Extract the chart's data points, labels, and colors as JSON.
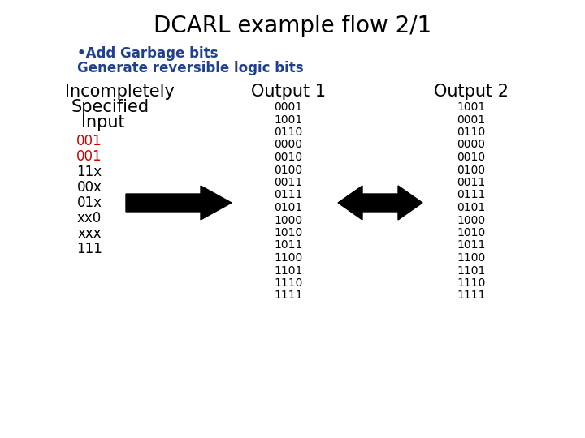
{
  "title": "DCARL example flow 2/1",
  "bullet_line1": "•Add Garbage bits",
  "bullet_line2": "Generate reversible logic bits",
  "bullet_color": "#1F3F8F",
  "input_items": [
    "001",
    "001",
    "11x",
    "00x",
    "01x",
    "xx0",
    "xxx",
    "111"
  ],
  "input_colors": [
    "#CC0000",
    "#CC0000",
    "#000000",
    "#000000",
    "#000000",
    "#000000",
    "#000000",
    "#000000"
  ],
  "output1": [
    "0001",
    "1001",
    "0110",
    "0000",
    "0010",
    "0100",
    "0011",
    "0111",
    "0101",
    "1000",
    "1010",
    "1011",
    "1100",
    "1101",
    "1110",
    "1111"
  ],
  "output2": [
    "1001",
    "0001",
    "0110",
    "0000",
    "0010",
    "0100",
    "0011",
    "0111",
    "0101",
    "1000",
    "1010",
    "1011",
    "1100",
    "1101",
    "1110",
    "1111"
  ],
  "bg_color": "#FFFFFF",
  "title_fontsize": 20,
  "header_fontsize": 15,
  "data_fontsize": 10,
  "bullet_fontsize": 12,
  "input_fontsize": 12
}
